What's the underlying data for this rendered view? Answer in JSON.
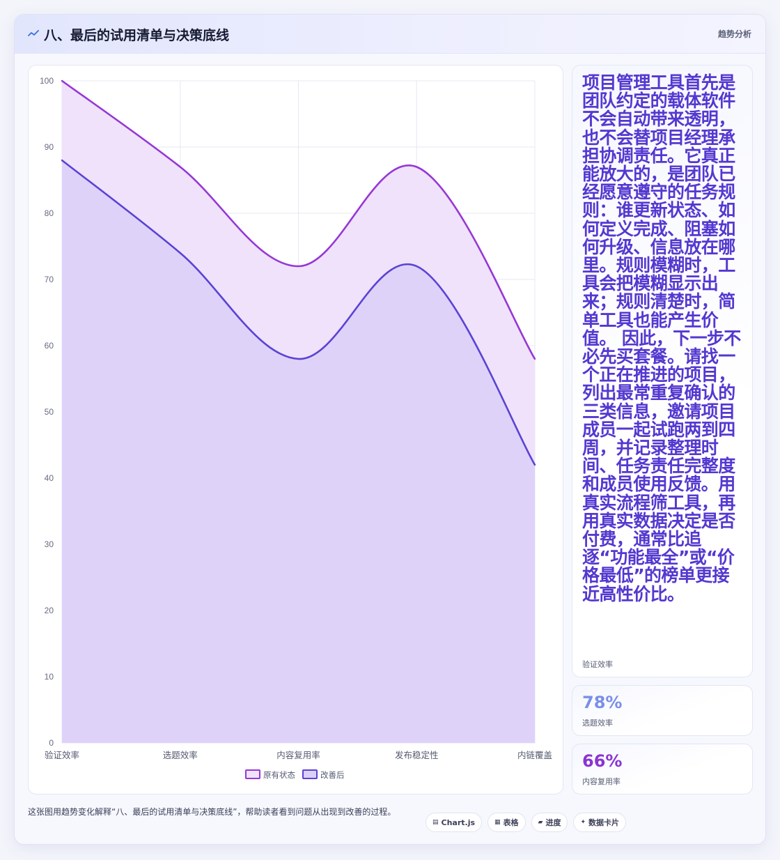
{
  "header": {
    "title": "八、最后的试用清单与决策底线",
    "tag": "趋势分析",
    "icon": "trend-line-icon"
  },
  "chart_data": {
    "type": "area",
    "categories": [
      "验证效率",
      "选题效率",
      "内容复用率",
      "发布稳定性",
      "内链覆盖"
    ],
    "series": [
      {
        "name": "原有状态",
        "values": [
          100,
          87,
          72,
          87,
          58
        ],
        "color": "#9637d6",
        "fill": "#efe2fa"
      },
      {
        "name": "改善后",
        "values": [
          88,
          74,
          58,
          72,
          42
        ],
        "color": "#5a43d4",
        "fill": "#dccff8"
      }
    ],
    "ylim": [
      0,
      100
    ],
    "yticks": [
      0,
      10,
      20,
      30,
      40,
      50,
      60,
      70,
      80,
      90,
      100
    ],
    "grid": true,
    "legend": "bottom",
    "title": "",
    "xlabel": "",
    "ylabel": ""
  },
  "side": {
    "text_card": {
      "text": "项目管理工具首先是团队约定的载体软件不会自动带来透明，也不会替项目经理承担协调责任。它真正能放大的，是团队已经愿意遵守的任务规则：谁更新状态、如何定义完成、阻塞如何升级、信息放在哪里。规则模糊时，工具会把模糊显示出来；规则清楚时，简单工具也能产生价值。 因此，下一步不必先买套餐。请找一个正在推进的项目，列出最常重复确认的三类信息，邀请项目成员一起试跑两到四周，并记录整理时间、任务责任完整度和成员使用反馈。用真实流程筛工具，再用真实数据决定是否付费，通常比追逐“功能最全”或“价格最低”的榜单更接近高性价比。",
      "caption": "验证效率",
      "color": "#5438d0"
    },
    "stats": [
      {
        "value": "78%",
        "label": "选题效率",
        "color": "#7b8fe6"
      },
      {
        "value": "66%",
        "label": "内容复用率",
        "color": "#8a34d2"
      }
    ]
  },
  "footer": {
    "text": "这张图用趋势变化解释“八、最后的试用清单与决策底线”，帮助读者看到问题从出现到改善的过程。",
    "chips": [
      {
        "icon": "▤",
        "label": "Chart.js"
      },
      {
        "icon": "▦",
        "label": "表格"
      },
      {
        "icon": "▰",
        "label": "进度"
      },
      {
        "icon": "✦",
        "label": "数据卡片"
      }
    ]
  }
}
